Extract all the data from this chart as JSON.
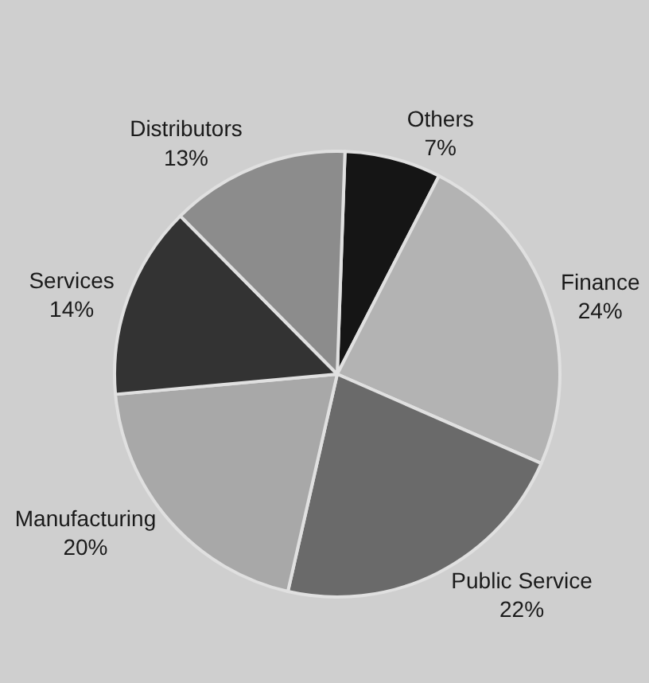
{
  "chart_data": {
    "type": "pie",
    "categories": [
      "Others",
      "Finance",
      "Public Service",
      "Manufacturing",
      "Services",
      "Distributors"
    ],
    "values": [
      7,
      24,
      22,
      20,
      14,
      13
    ],
    "value_labels": [
      "7%",
      "24%",
      "22%",
      "20%",
      "14%",
      "13%"
    ],
    "colors": [
      "#151515",
      "#b3b3b3",
      "#6a6a6a",
      "#a8a8a8",
      "#333333",
      "#8c8c8c"
    ],
    "legend": false
  }
}
